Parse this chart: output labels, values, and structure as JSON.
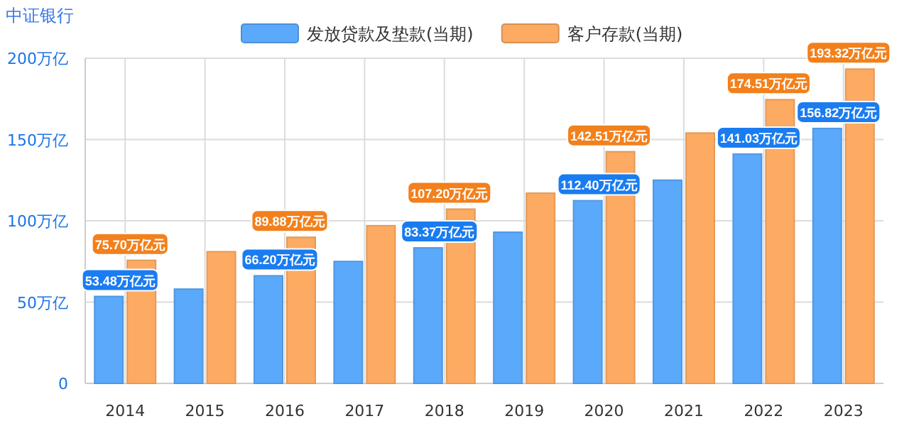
{
  "chart_data": {
    "type": "bar",
    "title": "中证银行",
    "categories": [
      "2014",
      "2015",
      "2016",
      "2017",
      "2018",
      "2019",
      "2020",
      "2021",
      "2022",
      "2023"
    ],
    "series": [
      {
        "name": "发放贷款及垫款(当期)",
        "color": "#5aa9fb",
        "values": [
          53.48,
          58,
          66.2,
          75,
          83.37,
          93,
          112.4,
          125,
          141.03,
          156.82
        ],
        "value_labels": [
          "53.48万亿元",
          null,
          "66.20万亿元",
          null,
          "83.37万亿元",
          null,
          "112.40万亿元",
          null,
          "141.03万亿元",
          "156.82万亿元"
        ]
      },
      {
        "name": "客户存款(当期)",
        "color": "#fdaa62",
        "values": [
          75.7,
          81,
          89.88,
          97,
          107.2,
          117,
          142.51,
          154,
          174.51,
          193.32
        ],
        "value_labels": [
          "75.70万亿元",
          null,
          "89.88万亿元",
          null,
          "107.20万亿元",
          null,
          "142.51万亿元",
          null,
          "174.51万亿元",
          "193.32万亿元"
        ]
      }
    ],
    "ylim": [
      0,
      200
    ],
    "yticks": [
      0,
      {
        "value": 50,
        "label": "50万亿"
      },
      {
        "value": 100,
        "label": "100万亿"
      },
      {
        "value": 150,
        "label": "150万亿"
      },
      {
        "value": 200,
        "label": "200万亿"
      }
    ],
    "grid": true,
    "legend": "top"
  }
}
